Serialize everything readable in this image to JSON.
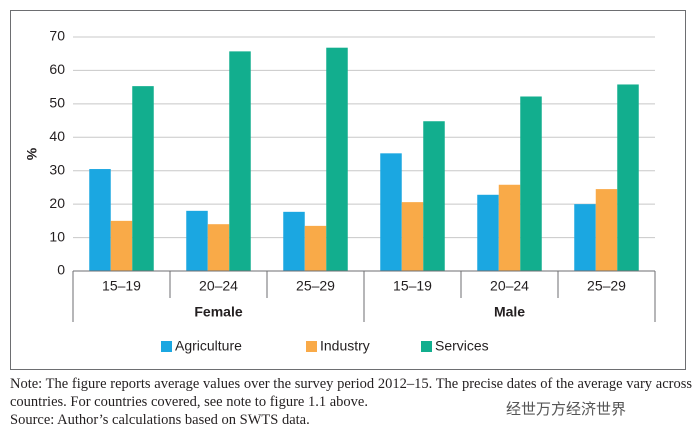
{
  "chart_data": {
    "type": "grouped_bar",
    "y_label": "%",
    "categories": [
      "15–19",
      "20–24",
      "25–29",
      "15–19",
      "20–24",
      "25–29"
    ],
    "groups": [
      "Female",
      "Male"
    ],
    "series": [
      {
        "name": "Agriculture",
        "color": "#1ba7e1",
        "values": [
          30.5,
          18,
          17.7,
          35.2,
          22.8,
          20
        ]
      },
      {
        "name": "Industry",
        "color": "#f9aa48",
        "values": [
          15,
          14,
          13.5,
          20.6,
          25.8,
          24.5
        ]
      },
      {
        "name": "Services",
        "color": "#12ae8e",
        "values": [
          55.3,
          65.7,
          66.8,
          44.8,
          52.2,
          55.8
        ]
      }
    ],
    "ylim": [
      0,
      70
    ],
    "yticks": [
      0,
      10,
      20,
      30,
      40,
      50,
      60,
      70
    ],
    "grid": true
  },
  "note": "Note: The figure reports average values over the survey period 2012–15. The precise dates of the average vary across countries. For countries covered, see note to figure 1.1 above.",
  "source": "Source: Author’s calculations based on SWTS data.",
  "watermark": "经世万方经济世界"
}
